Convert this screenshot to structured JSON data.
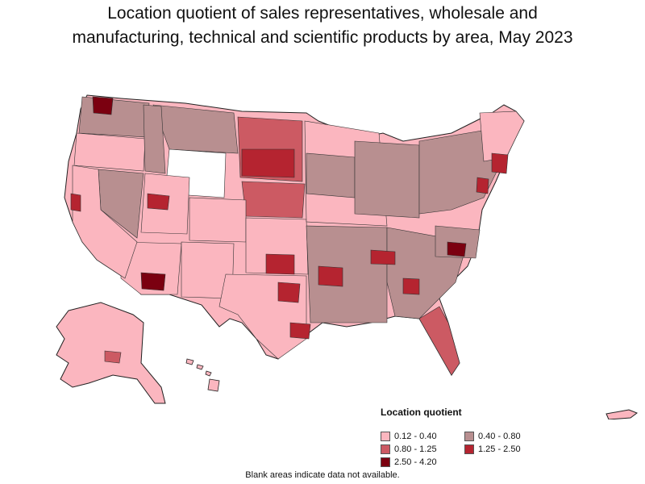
{
  "title_line1": "Location quotient of sales representatives, wholesale and",
  "title_line2": "manufacturing, technical and scientific products by area, May 2023",
  "legend": {
    "title": "Location quotient",
    "items": [
      {
        "label": "0.12 - 0.40",
        "color": "#fbb6bf"
      },
      {
        "label": "0.40 - 0.80",
        "color": "#b88f90"
      },
      {
        "label": "0.80 - 1.25",
        "color": "#cc5a63"
      },
      {
        "label": "1.25 - 2.50",
        "color": "#b52430"
      },
      {
        "label": "2.50 - 4.20",
        "color": "#7b0010"
      }
    ]
  },
  "footnote": "Blank areas indicate data not available.",
  "map": {
    "region": "United States (incl. Alaska, Hawaii, Puerto Rico)",
    "no_data_color": "#ffffff",
    "border_color": "#222222"
  }
}
